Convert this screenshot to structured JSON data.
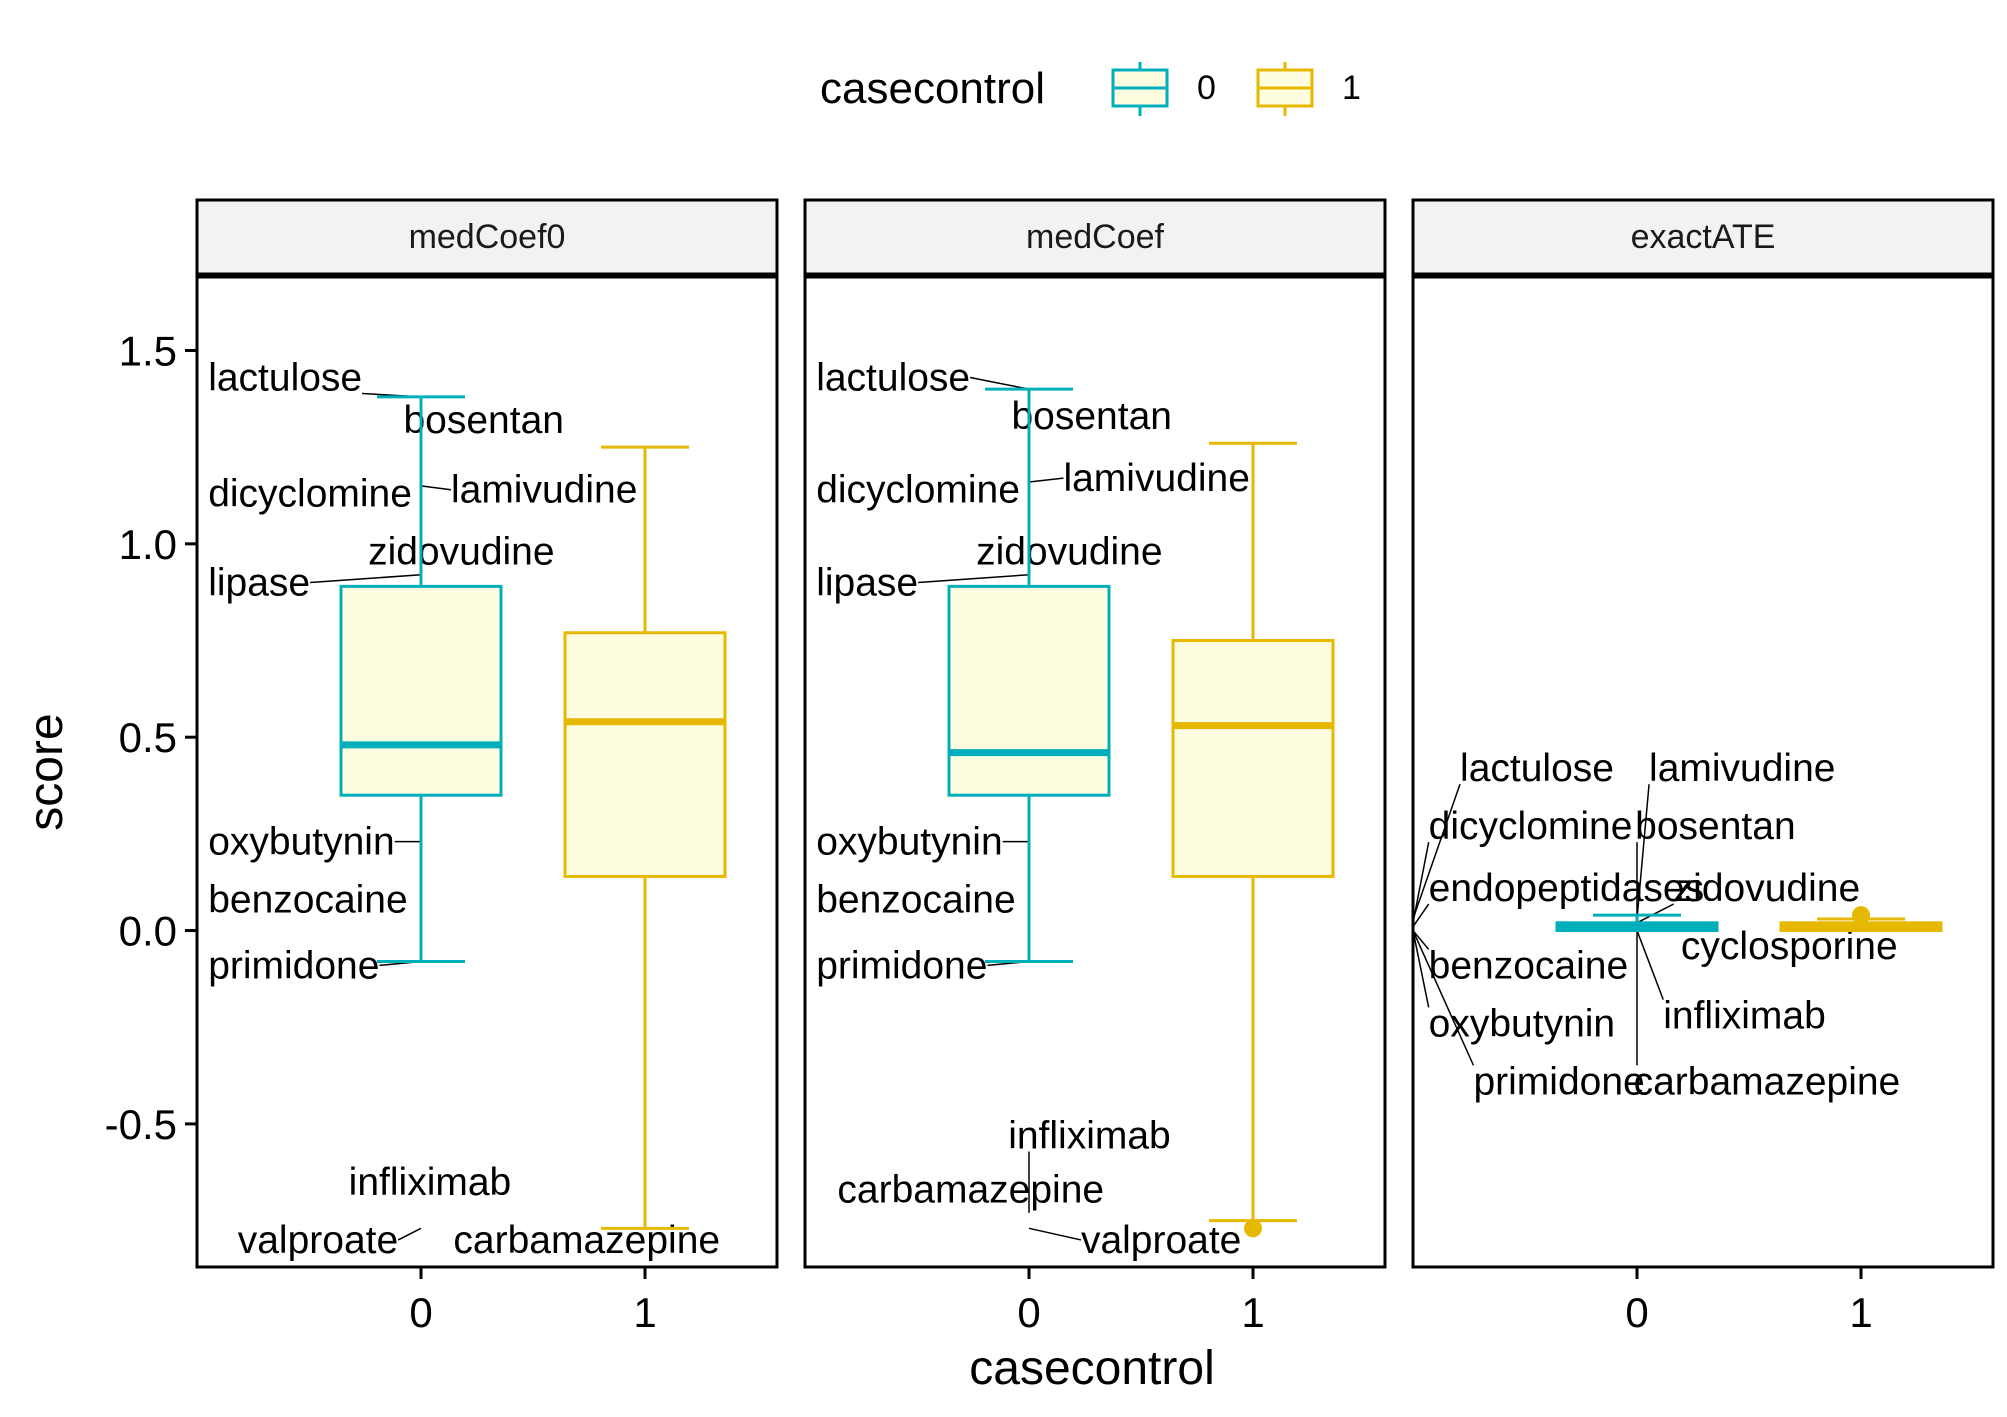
{
  "colors": {
    "group0": "#00AFBB",
    "group1": "#E7B800",
    "box_fill": "#FFFDE0",
    "strip_bg": "#F2F2F2"
  },
  "legend": {
    "title": "casecontrol",
    "labels": [
      "0",
      "1"
    ]
  },
  "chart_data": {
    "type": "box",
    "xlabel": "casecontrol",
    "ylabel": "score",
    "ylim": [
      -0.87,
      1.69
    ],
    "yticks": [
      -0.5,
      0.0,
      0.5,
      1.0,
      1.5
    ],
    "ytick_labels": [
      "-0.5",
      "0.0",
      "0.5",
      "1.0",
      "1.5"
    ],
    "categories": [
      "0",
      "1"
    ],
    "legend_position": "top",
    "grid": false,
    "facets": [
      {
        "name": "medCoef0",
        "boxes": [
          {
            "group": "0",
            "whisker_low": -0.08,
            "q1": 0.35,
            "median": 0.48,
            "q3": 0.89,
            "whisker_high": 1.38,
            "outliers": []
          },
          {
            "group": "1",
            "whisker_low": -0.77,
            "q1": 0.14,
            "median": 0.54,
            "q3": 0.77,
            "whisker_high": 1.25,
            "outliers": []
          }
        ],
        "labels": [
          {
            "text": "lactulose",
            "x": 0,
            "y": 1.38,
            "lx": -0.95,
            "ly": 1.43,
            "anchor": "start"
          },
          {
            "text": "bosentan",
            "x": 0,
            "y": 1.3,
            "lx": 0.28,
            "ly": 1.32,
            "anchor": "middle"
          },
          {
            "text": "dicyclomine",
            "x": 0,
            "y": 1.12,
            "lx": -0.95,
            "ly": 1.13,
            "anchor": "start"
          },
          {
            "text": "lamivudine",
            "x": 0,
            "y": 1.15,
            "lx": 0.55,
            "ly": 1.14,
            "anchor": "middle"
          },
          {
            "text": "zidovudine",
            "x": 0,
            "y": 0.98,
            "lx": 0.18,
            "ly": 0.98,
            "anchor": "middle"
          },
          {
            "text": "lipase",
            "x": 0,
            "y": 0.92,
            "lx": -0.95,
            "ly": 0.9,
            "anchor": "start"
          },
          {
            "text": "oxybutynin",
            "x": 0,
            "y": 0.23,
            "lx": -0.95,
            "ly": 0.23,
            "anchor": "start"
          },
          {
            "text": "benzocaine",
            "x": 0,
            "y": 0.08,
            "lx": -0.95,
            "ly": 0.08,
            "anchor": "start"
          },
          {
            "text": "primidone",
            "x": 0,
            "y": -0.08,
            "lx": -0.95,
            "ly": -0.09,
            "anchor": "start"
          },
          {
            "text": "infliximab",
            "x": 0,
            "y": -0.62,
            "lx": 0.04,
            "ly": -0.65,
            "anchor": "middle"
          },
          {
            "text": "valproate",
            "x": 0,
            "y": -0.77,
            "lx": -0.46,
            "ly": -0.8,
            "anchor": "middle"
          },
          {
            "text": "carbamazepine",
            "x": 1,
            "y": -0.77,
            "lx": 0.74,
            "ly": -0.8,
            "anchor": "middle"
          }
        ]
      },
      {
        "name": "medCoef",
        "boxes": [
          {
            "group": "0",
            "whisker_low": -0.08,
            "q1": 0.35,
            "median": 0.46,
            "q3": 0.89,
            "whisker_high": 1.4,
            "outliers": []
          },
          {
            "group": "1",
            "whisker_low": -0.75,
            "q1": 0.14,
            "median": 0.53,
            "q3": 0.75,
            "whisker_high": 1.26,
            "outliers": [
              -0.77
            ]
          }
        ],
        "labels": [
          {
            "text": "lactulose",
            "x": 0,
            "y": 1.4,
            "lx": -0.95,
            "ly": 1.43,
            "anchor": "start"
          },
          {
            "text": "bosentan",
            "x": 0,
            "y": 1.3,
            "lx": 0.28,
            "ly": 1.33,
            "anchor": "middle"
          },
          {
            "text": "dicyclomine",
            "x": 0,
            "y": 1.12,
            "lx": -0.95,
            "ly": 1.14,
            "anchor": "start"
          },
          {
            "text": "lamivudine",
            "x": 0,
            "y": 1.16,
            "lx": 0.57,
            "ly": 1.17,
            "anchor": "middle"
          },
          {
            "text": "zidovudine",
            "x": 0,
            "y": 0.98,
            "lx": 0.18,
            "ly": 0.98,
            "anchor": "middle"
          },
          {
            "text": "lipase",
            "x": 0,
            "y": 0.92,
            "lx": -0.95,
            "ly": 0.9,
            "anchor": "start"
          },
          {
            "text": "oxybutynin",
            "x": 0,
            "y": 0.23,
            "lx": -0.95,
            "ly": 0.23,
            "anchor": "start"
          },
          {
            "text": "benzocaine",
            "x": 0,
            "y": 0.08,
            "lx": -0.95,
            "ly": 0.08,
            "anchor": "start"
          },
          {
            "text": "primidone",
            "x": 0,
            "y": -0.08,
            "lx": -0.95,
            "ly": -0.09,
            "anchor": "start"
          },
          {
            "text": "infliximab",
            "x": 0,
            "y": -0.73,
            "lx": 0.27,
            "ly": -0.53,
            "anchor": "middle"
          },
          {
            "text": "carbamazepine",
            "x": 0,
            "y": -0.73,
            "lx": -0.26,
            "ly": -0.67,
            "anchor": "middle"
          },
          {
            "text": "valproate",
            "x": 0,
            "y": -0.77,
            "lx": 0.59,
            "ly": -0.8,
            "anchor": "middle"
          }
        ]
      },
      {
        "name": "exactATE",
        "boxes": [
          {
            "group": "0",
            "whisker_low": 0.0,
            "q1": 0.0,
            "median": 0.01,
            "q3": 0.02,
            "whisker_high": 0.04,
            "outliers": []
          },
          {
            "group": "1",
            "whisker_low": 0.0,
            "q1": 0.0,
            "median": 0.01,
            "q3": 0.02,
            "whisker_high": 0.03,
            "outliers": [
              0.04
            ]
          }
        ],
        "labels": [
          {
            "text": "lactulose",
            "x": -1.0,
            "y": 0.03,
            "lx": -0.79,
            "ly": 0.42,
            "anchor": "start"
          },
          {
            "text": "lamivudine",
            "x": 0.0,
            "y": 0.03,
            "lx": 0.47,
            "ly": 0.42,
            "anchor": "middle"
          },
          {
            "text": "dicyclomine",
            "x": -1.0,
            "y": 0.02,
            "lx": -0.93,
            "ly": 0.27,
            "anchor": "start"
          },
          {
            "text": "bosentan",
            "x": 0.0,
            "y": 0.03,
            "lx": 0.35,
            "ly": 0.27,
            "anchor": "middle"
          },
          {
            "text": "endopeptidases",
            "x": -1.0,
            "y": 0.01,
            "lx": -0.93,
            "ly": 0.11,
            "anchor": "start"
          },
          {
            "text": "zidovudine",
            "x": 0.0,
            "y": 0.02,
            "lx": 0.58,
            "ly": 0.11,
            "anchor": "middle"
          },
          {
            "text": "cyclosporine",
            "x": 0.0,
            "y": 0.01,
            "lx": 0.68,
            "ly": -0.04,
            "anchor": "middle"
          },
          {
            "text": "benzocaine",
            "x": -1.0,
            "y": 0.0,
            "lx": -0.93,
            "ly": -0.09,
            "anchor": "start"
          },
          {
            "text": "infliximab",
            "x": 0.0,
            "y": 0.0,
            "lx": 0.48,
            "ly": -0.22,
            "anchor": "middle"
          },
          {
            "text": "oxybutynin",
            "x": -1.0,
            "y": 0.0,
            "lx": -0.93,
            "ly": -0.24,
            "anchor": "start"
          },
          {
            "text": "primidone",
            "x": -1.0,
            "y": 0.0,
            "lx": -0.73,
            "ly": -0.39,
            "anchor": "start"
          },
          {
            "text": "carbamazepine",
            "x": 0.0,
            "y": 0.0,
            "lx": 0.58,
            "ly": -0.39,
            "anchor": "middle"
          }
        ]
      }
    ]
  }
}
